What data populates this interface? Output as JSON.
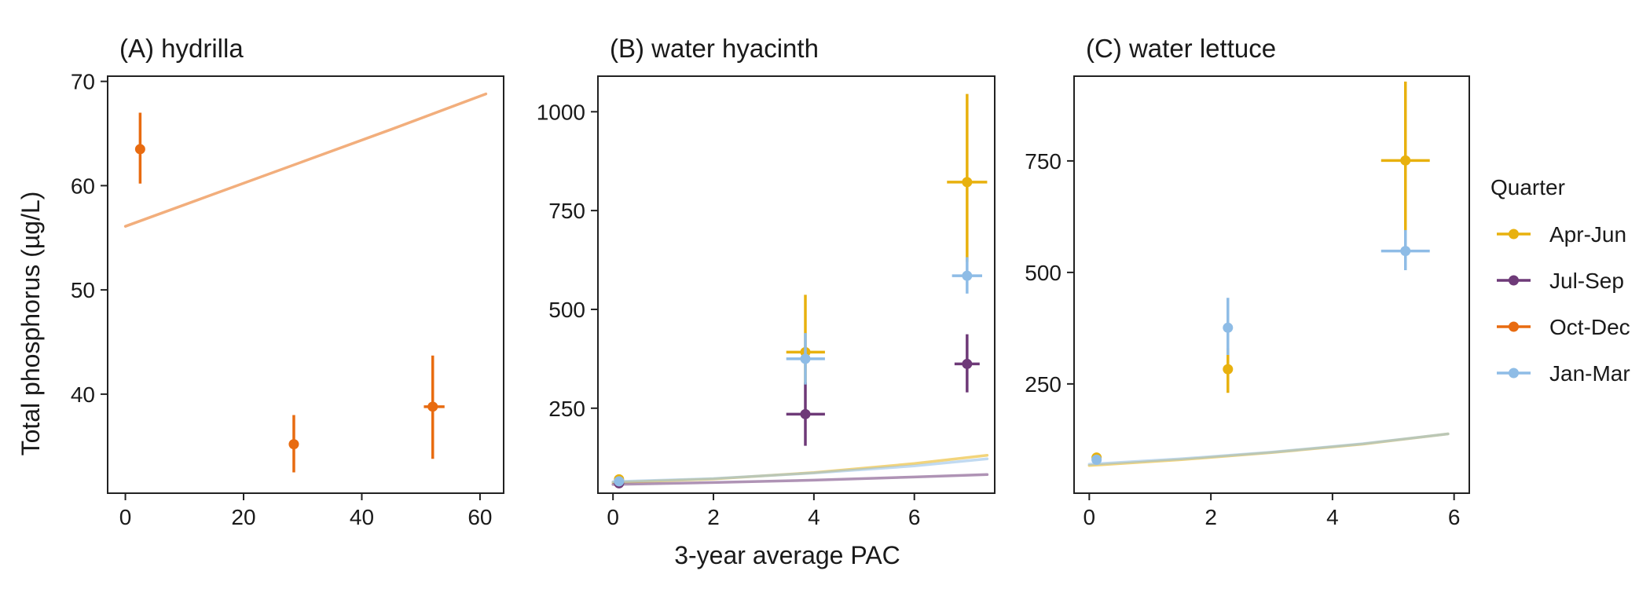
{
  "figure": {
    "y_axis_title": "Total phosphorus (µg/L)",
    "x_axis_title": "3-year average PAC"
  },
  "legend": {
    "title": "Quarter",
    "entries": [
      {
        "label": "Apr-Jun",
        "color": "#E8B10E"
      },
      {
        "label": "Jul-Sep",
        "color": "#6E3A78"
      },
      {
        "label": "Oct-Dec",
        "color": "#E86B10"
      },
      {
        "label": "Jan-Mar",
        "color": "#8EBCE6"
      }
    ]
  },
  "chart_data": [
    {
      "type": "scatter",
      "title": "(A) hydrilla",
      "xlim": [
        -3,
        64
      ],
      "ylim": [
        30.5,
        70.5
      ],
      "x_ticks": [
        0,
        20,
        40,
        60
      ],
      "y_ticks": [
        40,
        50,
        60,
        70
      ],
      "points": [
        {
          "series": "Oct-Dec",
          "x": 2.5,
          "y": 63.5,
          "y_lo": 60.2,
          "y_hi": 67.0,
          "x_lo": 2.5,
          "x_hi": 2.5
        },
        {
          "series": "Oct-Dec",
          "x": 28.5,
          "y": 35.2,
          "y_lo": 32.5,
          "y_hi": 38.0,
          "x_lo": 28.5,
          "x_hi": 28.5
        },
        {
          "series": "Oct-Dec",
          "x": 52.0,
          "y": 38.8,
          "y_lo": 33.8,
          "y_hi": 43.7,
          "x_lo": 50.5,
          "x_hi": 54.0
        }
      ],
      "fits": [
        {
          "series": "Oct-Dec",
          "x": [
            0,
            15,
            30,
            45,
            61
          ],
          "y": [
            56.1,
            59.2,
            62.3,
            65.4,
            68.8
          ]
        }
      ]
    },
    {
      "type": "scatter",
      "title": "(B) water hyacinth",
      "xlim": [
        -0.3,
        7.6
      ],
      "ylim": [
        35,
        1090
      ],
      "x_ticks": [
        0,
        2,
        4,
        6
      ],
      "y_ticks": [
        250,
        500,
        750,
        1000
      ],
      "points": [
        {
          "series": "Apr-Jun",
          "x": 0.12,
          "y": 70,
          "y_lo": 62,
          "y_hi": 78,
          "x_lo": 0.12,
          "x_hi": 0.12
        },
        {
          "series": "Jul-Sep",
          "x": 0.12,
          "y": 60,
          "y_lo": 54,
          "y_hi": 66,
          "x_lo": 0.12,
          "x_hi": 0.12
        },
        {
          "series": "Jan-Mar",
          "x": 0.12,
          "y": 65,
          "y_lo": 58,
          "y_hi": 72,
          "x_lo": 0.12,
          "x_hi": 0.12
        },
        {
          "series": "Apr-Jun",
          "x": 3.83,
          "y": 392,
          "y_lo": 310,
          "y_hi": 537,
          "x_lo": 3.45,
          "x_hi": 4.22
        },
        {
          "series": "Jul-Sep",
          "x": 3.83,
          "y": 235,
          "y_lo": 155,
          "y_hi": 315,
          "x_lo": 3.45,
          "x_hi": 4.22
        },
        {
          "series": "Jan-Mar",
          "x": 3.83,
          "y": 375,
          "y_lo": 310,
          "y_hi": 440,
          "x_lo": 3.45,
          "x_hi": 4.22
        },
        {
          "series": "Apr-Jun",
          "x": 7.05,
          "y": 822,
          "y_lo": 620,
          "y_hi": 1045,
          "x_lo": 6.65,
          "x_hi": 7.45
        },
        {
          "series": "Jul-Sep",
          "x": 7.05,
          "y": 362,
          "y_lo": 290,
          "y_hi": 437,
          "x_lo": 6.8,
          "x_hi": 7.3
        },
        {
          "series": "Jan-Mar",
          "x": 7.05,
          "y": 585,
          "y_lo": 540,
          "y_hi": 632,
          "x_lo": 6.75,
          "x_hi": 7.35
        }
      ],
      "fits": [
        {
          "series": "Apr-Jun",
          "x": [
            0,
            2,
            4,
            6,
            7.45
          ],
          "y": [
            62,
            71,
            87,
            110,
            131
          ]
        },
        {
          "series": "Jan-Mar",
          "x": [
            0,
            2,
            4,
            6,
            7.45
          ],
          "y": [
            64,
            72,
            86,
            104,
            122
          ]
        },
        {
          "series": "Jul-Sep",
          "x": [
            0,
            2,
            4,
            6,
            7.45
          ],
          "y": [
            57,
            62,
            68,
            76,
            82
          ]
        }
      ]
    },
    {
      "type": "scatter",
      "title": "(C) water lettuce",
      "xlim": [
        -0.25,
        6.25
      ],
      "ylim": [
        5,
        940
      ],
      "x_ticks": [
        0,
        2,
        4,
        6
      ],
      "y_ticks": [
        250,
        500,
        750
      ],
      "points": [
        {
          "series": "Apr-Jun",
          "x": 0.12,
          "y": 85,
          "y_lo": 78,
          "y_hi": 92,
          "x_lo": 0.12,
          "x_hi": 0.12
        },
        {
          "series": "Jan-Mar",
          "x": 0.12,
          "y": 80,
          "y_lo": 73,
          "y_hi": 87,
          "x_lo": 0.12,
          "x_hi": 0.12
        },
        {
          "series": "Apr-Jun",
          "x": 2.28,
          "y": 283,
          "y_lo": 230,
          "y_hi": 330,
          "x_lo": 2.28,
          "x_hi": 2.28
        },
        {
          "series": "Jan-Mar",
          "x": 2.28,
          "y": 376,
          "y_lo": 315,
          "y_hi": 443,
          "x_lo": 2.28,
          "x_hi": 2.28
        },
        {
          "series": "Apr-Jun",
          "x": 5.2,
          "y": 751,
          "y_lo": 590,
          "y_hi": 928,
          "x_lo": 4.8,
          "x_hi": 5.6
        },
        {
          "series": "Jan-Mar",
          "x": 5.2,
          "y": 548,
          "y_lo": 505,
          "y_hi": 595,
          "x_lo": 4.8,
          "x_hi": 5.6
        }
      ],
      "fits": [
        {
          "series": "Apr-Jun",
          "x": [
            0,
            1.5,
            3,
            4.5,
            5.9
          ],
          "y": [
            67,
            80,
            96,
            115,
            138
          ]
        },
        {
          "series": "Jan-Mar",
          "x": [
            0,
            1.5,
            3,
            4.5,
            5.9
          ],
          "y": [
            70,
            82,
            97,
            116,
            138
          ]
        }
      ]
    }
  ]
}
